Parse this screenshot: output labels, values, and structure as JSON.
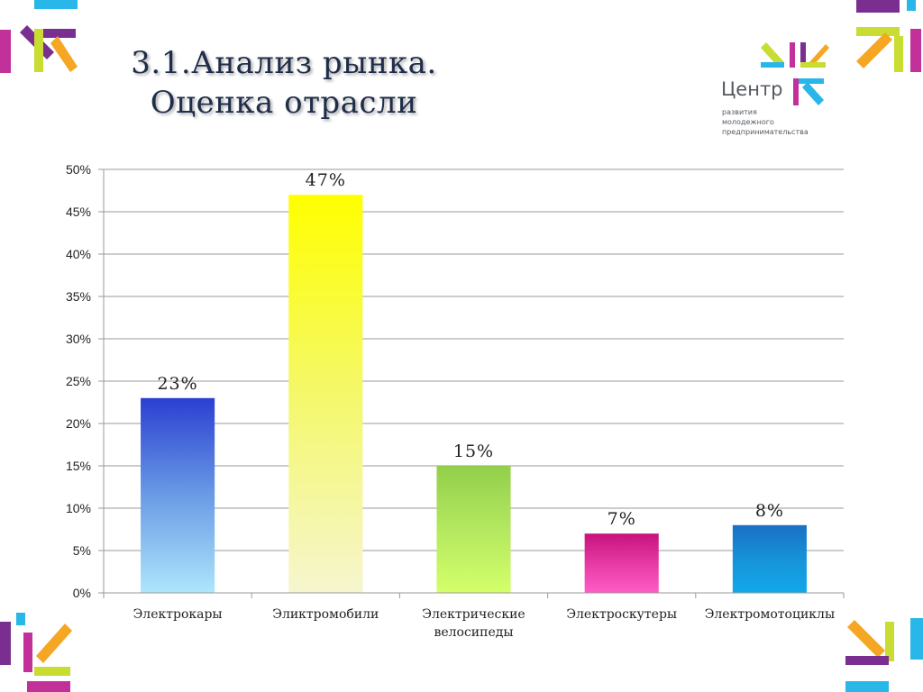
{
  "title": {
    "line1": "3.1.Анализ рынка.",
    "line2": "Оценка отрасли"
  },
  "logo": {
    "name": "Центр",
    "sub_lines": [
      "развития",
      "молодежного",
      "предпринимательства"
    ]
  },
  "colors": {
    "deco_blue": "#29b6e8",
    "deco_magenta": "#c2309a",
    "deco_purple": "#7a2e8f",
    "deco_orange": "#f5a623",
    "deco_lime": "#c8dc32",
    "grid": "#9a9a9a",
    "axis": "#9a9a9a"
  },
  "chart_data": {
    "type": "bar",
    "categories": [
      "Электрокары",
      "Эликтромобили",
      "Электрические велосипеды",
      "Электроскутеры",
      "Электромотоциклы"
    ],
    "values": [
      23,
      47,
      15,
      7,
      8
    ],
    "data_labels": [
      "23%",
      "47%",
      "15%",
      "7%",
      "8%"
    ],
    "ylim": [
      0,
      50
    ],
    "yticks": [
      0,
      5,
      10,
      15,
      20,
      25,
      30,
      35,
      40,
      45,
      50
    ],
    "ytick_labels": [
      "0%",
      "5%",
      "10%",
      "15%",
      "20%",
      "25%",
      "30%",
      "35%",
      "40%",
      "45%",
      "50%"
    ],
    "grid": true,
    "bar_gradients": [
      [
        "#2b3fd1",
        "#6a9be6",
        "#aee6fb"
      ],
      [
        "#ffff00",
        "#f4f86a",
        "#f6f6cf"
      ],
      [
        "#92cf4a",
        "#b4e860",
        "#d4ff6a"
      ],
      [
        "#c8127c",
        "#e63aa3",
        "#ff5cc8"
      ],
      [
        "#1a6fc4",
        "#1693d8",
        "#12a8ea"
      ]
    ]
  }
}
